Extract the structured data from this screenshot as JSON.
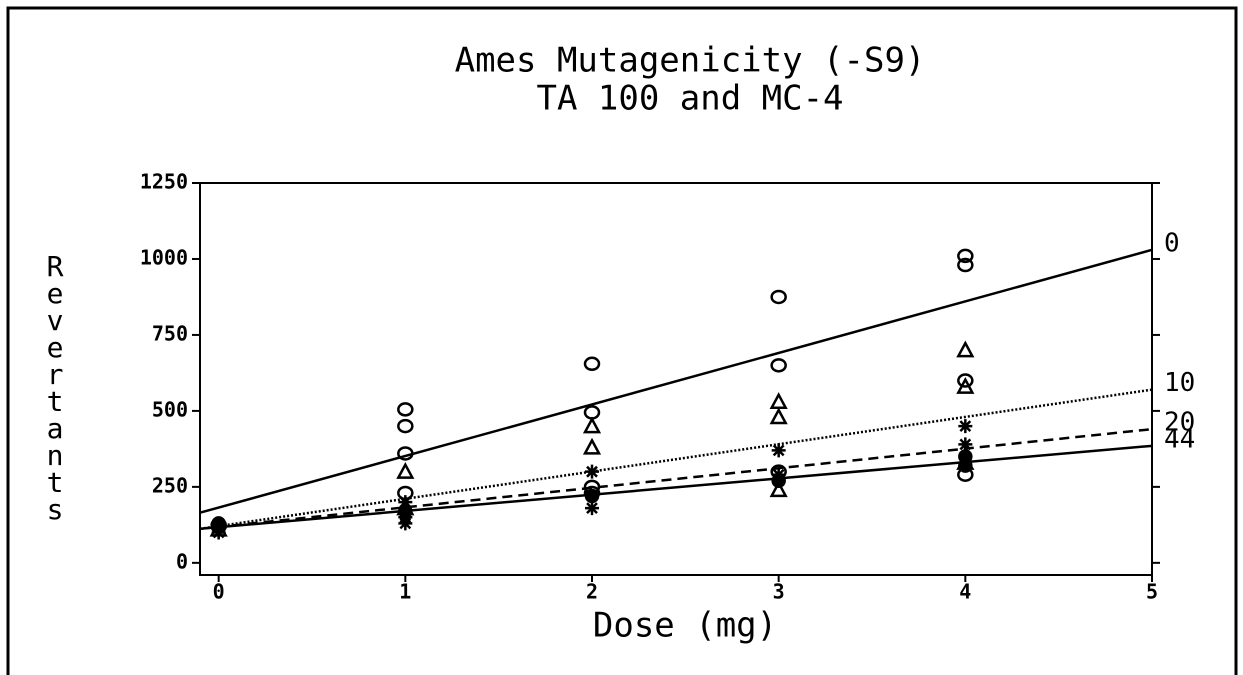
{
  "chart_data": {
    "type": "scatter",
    "title": "Ames Mutagenicity (-S9)",
    "subtitle": "TA 100 and MC-4",
    "x_label": "Dose (mg)",
    "y_label": "Revertants",
    "xlim": [
      -0.1,
      5
    ],
    "xticks": [
      0,
      1,
      2,
      3,
      4,
      5
    ],
    "ylim": [
      -40,
      1250
    ],
    "yticks": [
      0,
      250,
      500,
      750,
      1000,
      1250
    ],
    "series": [
      {
        "name": "0",
        "color": "#000000",
        "marker": "circle",
        "dash": "none",
        "x": [
          0,
          0,
          1,
          1,
          1,
          1,
          2,
          2,
          2,
          2,
          3,
          3,
          3,
          4,
          4,
          4,
          4
        ],
        "values": [
          125,
          120,
          505,
          450,
          360,
          230,
          655,
          495,
          250,
          230,
          875,
          650,
          300,
          1010,
          980,
          600,
          290
        ],
        "line": {
          "x": [
            -0.1,
            5
          ],
          "values": [
            165,
            1030
          ]
        }
      },
      {
        "name": "10",
        "color": "#000000",
        "marker": "triangle",
        "dash": "dotted",
        "x": [
          0,
          1,
          1,
          2,
          2,
          3,
          3,
          3,
          4,
          4,
          4
        ],
        "values": [
          110,
          300,
          180,
          450,
          380,
          530,
          480,
          240,
          700,
          580,
          330
        ],
        "line": {
          "x": [
            -0.1,
            5
          ],
          "values": [
            112,
            570
          ]
        }
      },
      {
        "name": "20",
        "color": "#000000",
        "marker": "asterisk",
        "dash": "dashed",
        "x": [
          0,
          1,
          1,
          1,
          2,
          2,
          3,
          3,
          4,
          4
        ],
        "values": [
          100,
          200,
          150,
          130,
          300,
          180,
          370,
          290,
          450,
          390
        ],
        "line": {
          "x": [
            -0.1,
            5
          ],
          "values": [
            112,
            440
          ]
        }
      },
      {
        "name": "44",
        "color": "#000000",
        "marker": "filled",
        "dash": "none",
        "x": [
          0,
          1,
          2,
          3,
          4,
          4
        ],
        "values": [
          130,
          170,
          220,
          270,
          350,
          320
        ],
        "line": {
          "x": [
            -0.1,
            5
          ],
          "values": [
            112,
            385
          ]
        }
      }
    ]
  }
}
